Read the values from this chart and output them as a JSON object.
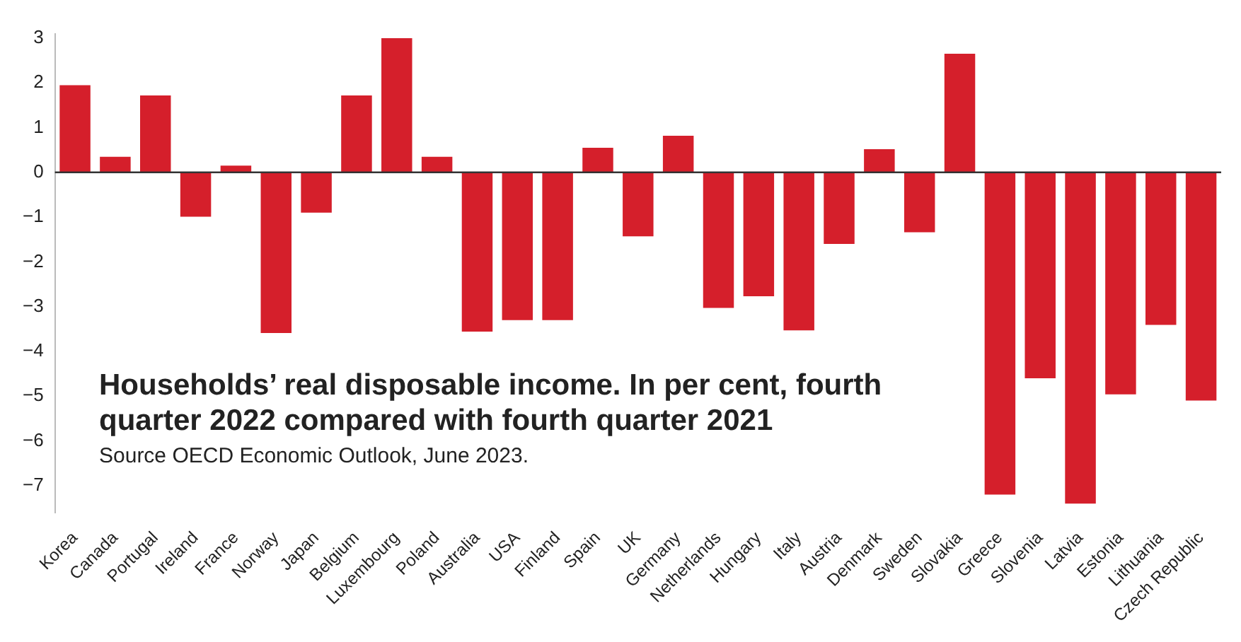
{
  "chart_data": {
    "type": "bar",
    "title": "Households’ real disposable income. In per cent, fourth quarter 2022 compared with fourth quarter 2021",
    "annotations": [
      "Source OECD Economic Outlook, June 2023."
    ],
    "categories": [
      "Korea",
      "Canada",
      "Portugal",
      "Ireland",
      "France",
      "Norway",
      "Japan",
      "Belgium",
      "Luxembourg",
      "Poland",
      "Australia",
      "USA",
      "Finland",
      "Spain",
      "UK",
      "Germany",
      "Netherlands",
      "Hungary",
      "Italy",
      "Austria",
      "Denmark",
      "Sweden",
      "Slovakia",
      "Greece",
      "Slovenia",
      "Latvia",
      "Estonia",
      "Lithuania",
      "Czech Republic"
    ],
    "values": [
      1.95,
      0.35,
      1.72,
      -0.99,
      0.15,
      -3.59,
      -0.9,
      1.72,
      3.0,
      0.35,
      -3.56,
      -3.3,
      -3.3,
      0.55,
      -1.43,
      0.82,
      -3.03,
      -2.77,
      -3.53,
      -1.6,
      0.52,
      -1.34,
      2.65,
      -7.2,
      -4.6,
      -7.4,
      -4.96,
      -3.41,
      -5.1
    ],
    "color": "#d51f2b",
    "ref_lines": [
      {
        "axis": "y",
        "value": 0
      }
    ],
    "ylim": [
      -7.6,
      3.1
    ],
    "yticks": [
      {
        "value": -7,
        "label": "−7"
      },
      {
        "value": -6,
        "label": "−6"
      },
      {
        "value": -5,
        "label": "−5"
      },
      {
        "value": -4,
        "label": "−4"
      },
      {
        "value": -3,
        "label": "−3"
      },
      {
        "value": -2,
        "label": "−2"
      },
      {
        "value": -1,
        "label": "−1"
      },
      0,
      1,
      2,
      3
    ],
    "grid": false,
    "legend": false
  }
}
